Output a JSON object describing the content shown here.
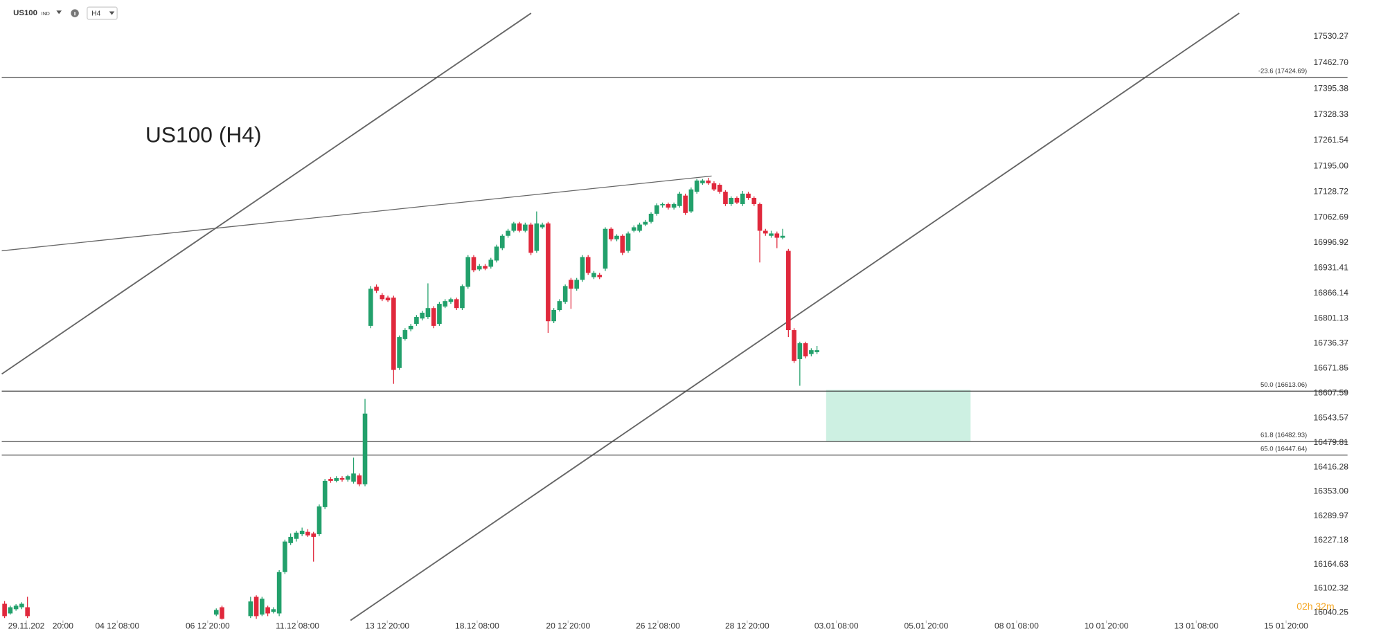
{
  "toolbar": {
    "symbol": "US100",
    "market": "IND",
    "timeframe": "H4"
  },
  "countdown": "02h 32m",
  "chart_data": {
    "type": "candlestick",
    "title": "US100 (H4)",
    "up_color": "#22a06b",
    "down_color": "#e0283c",
    "x": [
      0,
      1,
      2,
      3,
      4,
      37,
      38,
      43,
      44,
      45,
      46,
      47,
      48,
      49,
      50,
      51,
      52,
      53,
      54,
      55,
      56,
      57,
      58,
      59,
      60,
      61,
      62,
      63,
      64,
      65,
      66,
      67,
      68,
      69,
      70,
      71,
      72,
      73,
      74,
      75,
      76,
      77,
      78,
      79,
      80,
      81,
      82,
      83,
      84,
      85,
      86,
      87,
      88,
      89,
      90,
      91,
      92,
      93,
      94,
      95,
      96,
      97,
      98,
      99,
      100,
      101,
      102,
      103,
      104,
      105,
      106,
      107,
      108,
      109,
      110,
      111,
      112,
      113,
      114,
      115,
      116,
      117,
      118,
      119,
      120,
      121,
      122,
      123,
      124,
      125,
      126,
      127,
      128,
      129,
      130,
      131,
      132,
      133,
      134,
      135,
      136,
      137,
      138,
      139,
      140,
      141,
      142
    ],
    "open": [
      16063,
      16038,
      16049,
      16054,
      16054,
      16035,
      16054,
      16031,
      16081,
      16035,
      16054,
      16042,
      16038,
      16145,
      16220,
      16231,
      16243,
      16249,
      16245,
      16243,
      16313,
      16386,
      16381,
      16388,
      16384,
      16379,
      16395,
      16372,
      16782,
      16883,
      16862,
      16855,
      16855,
      16673,
      16748,
      16773,
      16787,
      16801,
      16805,
      16828,
      16787,
      16832,
      16844,
      16851,
      16828,
      16883,
      16960,
      16928,
      16937,
      16935,
      16951,
      16983,
      17015,
      17028,
      17047,
      17028,
      17044,
      16976,
      17037,
      17047,
      16794,
      16823,
      16844,
      16901,
      16878,
      16901,
      16960,
      16908,
      16914,
      16930,
      17033,
      17006,
      17015,
      16976,
      17028,
      17028,
      17044,
      17051,
      17072,
      17094,
      17097,
      17088,
      17092,
      17119,
      17078,
      17129,
      17151,
      17158,
      17151,
      17147,
      17129,
      17097,
      17113,
      17097,
      17124,
      17113,
      17097,
      17028,
      17015,
      17021,
      17010,
      16976,
      16771,
      16696,
      16737,
      16709,
      16714
    ],
    "high": [
      16070,
      16058,
      16062,
      16067,
      16081,
      16051,
      16058,
      16081,
      16085,
      16081,
      16058,
      16054,
      16150,
      16229,
      16245,
      16252,
      16260,
      16256,
      16249,
      16320,
      16386,
      16391,
      16393,
      16393,
      16397,
      16441,
      16400,
      16593,
      16885,
      16889,
      16867,
      16860,
      16860,
      16757,
      16776,
      16787,
      16810,
      16821,
      16892,
      16833,
      16844,
      16851,
      16855,
      16855,
      16889,
      16965,
      16965,
      16942,
      16942,
      16958,
      16992,
      17019,
      17033,
      17051,
      17051,
      17049,
      17049,
      17078,
      17049,
      17051,
      16828,
      16851,
      16889,
      16906,
      16906,
      16965,
      16965,
      16924,
      16919,
      17037,
      17037,
      17019,
      17019,
      17026,
      17042,
      17049,
      17056,
      17076,
      17099,
      17101,
      17101,
      17101,
      17129,
      17124,
      17140,
      17162,
      17162,
      17165,
      17156,
      17151,
      17133,
      17117,
      17117,
      17131,
      17129,
      17117,
      17101,
      17033,
      17028,
      17026,
      17033,
      16981,
      16776,
      16741,
      16741,
      16724,
      16730
    ],
    "low": [
      16026,
      16035,
      16045,
      16049,
      16026,
      16031,
      16022,
      16026,
      16024,
      16031,
      16031,
      16038,
      16031,
      16140,
      16215,
      16224,
      16238,
      16236,
      16172,
      16238,
      16308,
      16376,
      16377,
      16379,
      16379,
      16374,
      16367,
      16367,
      16776,
      16867,
      16846,
      16844,
      16632,
      16668,
      16744,
      16768,
      16782,
      16796,
      16800,
      16776,
      16782,
      16828,
      16839,
      16823,
      16823,
      16878,
      16921,
      16924,
      16926,
      16930,
      16946,
      16978,
      17010,
      17024,
      17024,
      17024,
      16965,
      16971,
      17033,
      16764,
      16789,
      16819,
      16839,
      16826,
      16873,
      16896,
      16914,
      16903,
      16903,
      16924,
      17001,
      17001,
      16965,
      16971,
      17024,
      17024,
      17040,
      17047,
      17067,
      17088,
      17083,
      17083,
      17088,
      17069,
      17074,
      17124,
      17147,
      17147,
      17131,
      17124,
      17092,
      17092,
      17097,
      17092,
      17108,
      17092,
      16946,
      17015,
      17010,
      16983,
      17006,
      16753,
      16686,
      16627,
      16698,
      16703,
      16709
    ],
    "close": [
      16031,
      16054,
      16058,
      16063,
      16031,
      16047,
      16024,
      16069,
      16031,
      16076,
      16038,
      16049,
      16145,
      16224,
      16236,
      16247,
      16252,
      16240,
      16236,
      16315,
      16381,
      16381,
      16388,
      16384,
      16393,
      16400,
      16372,
      16555,
      16878,
      16873,
      16851,
      16848,
      16668,
      16753,
      16771,
      16782,
      16805,
      16816,
      16828,
      16782,
      16839,
      16846,
      16851,
      16828,
      16885,
      16960,
      16926,
      16937,
      16930,
      16953,
      16987,
      17015,
      17028,
      17047,
      17028,
      17044,
      16971,
      17047,
      17044,
      16794,
      16823,
      16846,
      16885,
      16878,
      16901,
      16960,
      16919,
      16919,
      16908,
      17033,
      17006,
      17015,
      16971,
      17021,
      17037,
      17044,
      17051,
      17072,
      17094,
      17097,
      17088,
      17097,
      17124,
      17074,
      17135,
      17158,
      17158,
      17151,
      17135,
      17129,
      17097,
      17113,
      17101,
      17124,
      17113,
      17097,
      17028,
      17021,
      17021,
      17010,
      17015,
      16771,
      16691,
      16737,
      16703,
      16719,
      16719
    ],
    "xlim": [
      -0.8,
      231.5
    ],
    "ylim": [
      16020,
      17625
    ],
    "xticks": [
      {
        "value": 3.8,
        "label": "29.11.202"
      },
      {
        "value": 10.2,
        "label": "20:00"
      },
      {
        "value": 19.7,
        "label": "04 12 08:00"
      },
      {
        "value": 35.5,
        "label": "06 12 20:00"
      },
      {
        "value": 51.2,
        "label": "11.12 08:00"
      },
      {
        "value": 66.9,
        "label": "13 12 20:00"
      },
      {
        "value": 82.6,
        "label": "18.12 08:00"
      },
      {
        "value": 98.5,
        "label": "20 12 20:00"
      },
      {
        "value": 114.2,
        "label": "26 12 08:00"
      },
      {
        "value": 129.8,
        "label": "28 12 20:00"
      },
      {
        "value": 145.4,
        "label": "03.01 08:00"
      },
      {
        "value": 161.1,
        "label": "05.01 20:00"
      },
      {
        "value": 176.9,
        "label": "08 01 08:00"
      },
      {
        "value": 192.6,
        "label": "10 01 20:00"
      },
      {
        "value": 208.3,
        "label": "13 01 08:00"
      },
      {
        "value": 224,
        "label": "15 01 20:00"
      }
    ],
    "yticks": [
      {
        "value": 17530.27,
        "label": "17530.27"
      },
      {
        "value": 17462.7,
        "label": "17462.70"
      },
      {
        "value": 17395.38,
        "label": "17395.38"
      },
      {
        "value": 17328.33,
        "label": "17328.33"
      },
      {
        "value": 17261.54,
        "label": "17261.54"
      },
      {
        "value": 17195,
        "label": "17195.00"
      },
      {
        "value": 17128.72,
        "label": "17128.72"
      },
      {
        "value": 17062.69,
        "label": "17062.69"
      },
      {
        "value": 16996.92,
        "label": "16996.92"
      },
      {
        "value": 16931.41,
        "label": "16931.41"
      },
      {
        "value": 16866.14,
        "label": "16866.14"
      },
      {
        "value": 16801.13,
        "label": "16801.13"
      },
      {
        "value": 16736.37,
        "label": "16736.37"
      },
      {
        "value": 16671.85,
        "label": "16671.85"
      },
      {
        "value": 16607.59,
        "label": "16607.59"
      },
      {
        "value": 16543.57,
        "label": "16543.57"
      },
      {
        "value": 16479.81,
        "label": "16479.81"
      },
      {
        "value": 16416.28,
        "label": "16416.28"
      },
      {
        "value": 16353,
        "label": "16353.00"
      },
      {
        "value": 16289.97,
        "label": "16289.97"
      },
      {
        "value": 16227.18,
        "label": "16227.18"
      },
      {
        "value": 16164.63,
        "label": "16164.63"
      },
      {
        "value": 16102.32,
        "label": "16102.32"
      },
      {
        "value": 16040.25,
        "label": "16040.25"
      }
    ],
    "levels": [
      {
        "value": 17424.69,
        "label": "-23.6 (17424.69)"
      },
      {
        "value": 16613.06,
        "label": "50.0 (16613.06)"
      },
      {
        "value": 16482.93,
        "label": "61.8 (16482.93)"
      },
      {
        "value": 16447.64,
        "label": "65.0 (16447.64)"
      }
    ],
    "grid": false
  }
}
